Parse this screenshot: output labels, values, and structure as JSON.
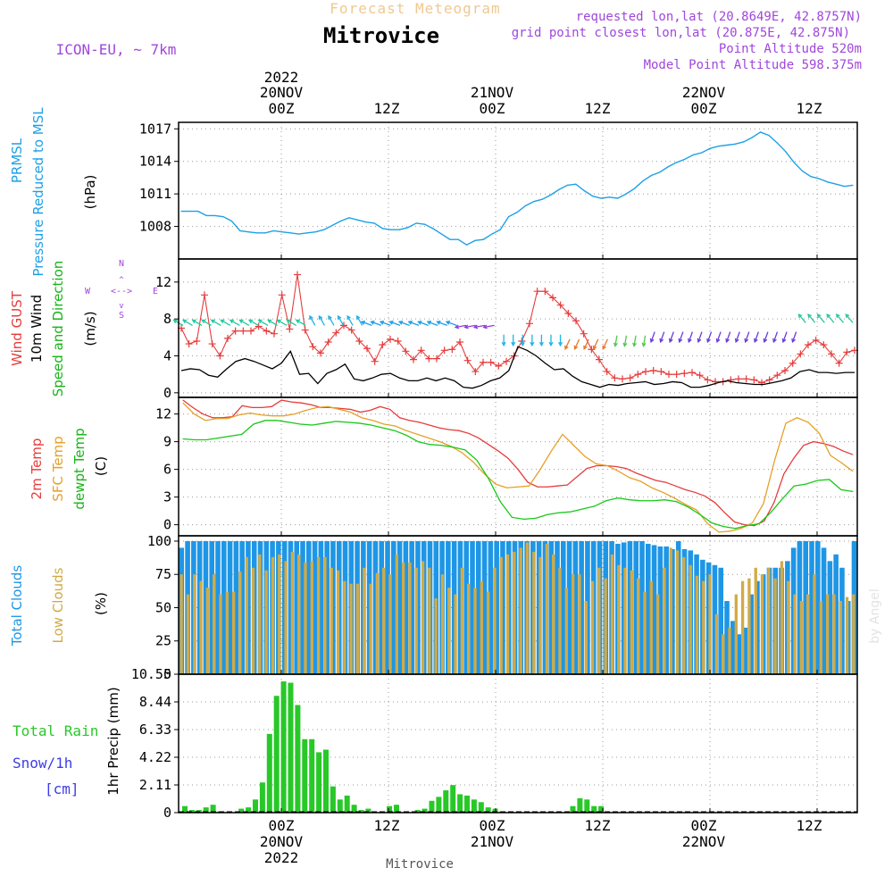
{
  "header": {
    "product": "Forecast Meteogram",
    "location": "Mitrovice",
    "model": "ICON-EU, ~ 7km",
    "requested": "requested lon,lat (20.8649E, 42.8757N)",
    "grid_point": "grid point closest lon,lat (20.875E, 42.875N)",
    "point_alt": "Point Altitude 520m",
    "model_alt": "Model Point Altitude 598.375m",
    "footer": "Mitrovice",
    "watermark": "by Angel"
  },
  "colors": {
    "pressure": "#1ea0e6",
    "gust": "#e63c3c",
    "wind": "#000000",
    "temp2m": "#e63c3c",
    "sfc": "#e6a028",
    "dewpt": "#18c818",
    "total_clouds": "#1e96e6",
    "low_clouds": "#d2aa46",
    "rain": "#28c828",
    "snow": "#3c3ce6",
    "compass": "#a046dc"
  },
  "chart_data": [
    {
      "type": "line",
      "id": "pressure",
      "label_lines": [
        "PRMSL",
        "Pressure Reduced to MSL"
      ],
      "unit": "(hPa)",
      "ylim": [
        1005,
        1017.6
      ],
      "ticks": [
        1008,
        1011,
        1014,
        1017
      ],
      "x_hours": {
        "start": 0,
        "step": 1
      },
      "series": [
        {
          "name": "PRMSL",
          "values": [
            1009.4,
            1009.4,
            1009.4,
            1009,
            1009,
            1008.9,
            1008.5,
            1007.6,
            1007.5,
            1007.4,
            1007.4,
            1007.6,
            1007.5,
            1007.4,
            1007.3,
            1007.4,
            1007.5,
            1007.7,
            1008.1,
            1008.5,
            1008.8,
            1008.6,
            1008.4,
            1008.3,
            1007.8,
            1007.7,
            1007.7,
            1007.9,
            1008.3,
            1008.2,
            1007.8,
            1007.3,
            1006.8,
            1006.8,
            1006.3,
            1006.7,
            1006.8,
            1007.3,
            1007.7,
            1008.9,
            1009.3,
            1009.9,
            1010.3,
            1010.5,
            1010.9,
            1011.4,
            1011.8,
            1011.9,
            1011.3,
            1010.8,
            1010.6,
            1010.7,
            1010.6,
            1011.0,
            1011.5,
            1012.2,
            1012.7,
            1013.0,
            1013.5,
            1013.9,
            1014.2,
            1014.6,
            1014.8,
            1015.2,
            1015.4,
            1015.5,
            1015.6,
            1015.8,
            1016.2,
            1016.7,
            1016.4,
            1015.7,
            1014.9,
            1013.9,
            1013.1,
            1012.6,
            1012.4,
            1012.1,
            1011.9,
            1011.7,
            1011.8
          ]
        }
      ]
    },
    {
      "type": "line",
      "id": "wind",
      "label_lines": [
        "Wind GUST",
        "10m Wind",
        "Speed and Direction"
      ],
      "unit": "(m/s)",
      "ylim": [
        -0.5,
        14.5
      ],
      "ticks": [
        0,
        4,
        8,
        12
      ],
      "compass": {
        "n": "N",
        "s": "S",
        "e": "E",
        "w": "W"
      },
      "series": [
        {
          "name": "Wind GUST",
          "values": [
            7.0,
            5.3,
            5.6,
            10.6,
            5.3,
            4.0,
            5.9,
            6.7,
            6.7,
            6.7,
            7.2,
            6.7,
            6.4,
            10.6,
            6.9,
            12.8,
            6.8,
            5.0,
            4.3,
            5.5,
            6.5,
            7.3,
            6.8,
            5.6,
            4.8,
            3.4,
            5.2,
            5.8,
            5.6,
            4.5,
            3.6,
            4.6,
            3.7,
            3.7,
            4.6,
            4.7,
            5.5,
            3.5,
            2.3,
            3.3,
            3.3,
            2.9,
            3.4,
            4.0,
            5.6,
            7.5,
            11.0,
            11.0,
            10.3,
            9.5,
            8.6,
            7.8,
            6.4,
            4.7,
            3.6,
            2.3,
            1.6,
            1.5,
            1.6,
            2.0,
            2.3,
            2.4,
            2.3,
            2.0,
            2.0,
            2.1,
            2.2,
            1.9,
            1.4,
            1.2,
            1.2,
            1.4,
            1.5,
            1.5,
            1.4,
            1.1,
            1.4,
            1.9,
            2.4,
            3.2,
            4.2,
            5.2,
            5.7,
            5.2,
            4.2,
            3.2,
            4.4,
            4.6
          ]
        },
        {
          "name": "10m Wind",
          "values": [
            2.4,
            2.6,
            2.5,
            1.9,
            1.7,
            2.6,
            3.4,
            3.7,
            3.4,
            3.0,
            2.6,
            3.2,
            4.5,
            2.0,
            2.1,
            1.0,
            2.1,
            2.5,
            3.1,
            1.5,
            1.3,
            1.6,
            2.0,
            2.1,
            1.6,
            1.3,
            1.3,
            1.6,
            1.3,
            1.6,
            1.3,
            0.6,
            0.5,
            0.8,
            1.3,
            1.6,
            2.4,
            5.0,
            4.6,
            4.0,
            3.2,
            2.5,
            2.6,
            1.8,
            1.2,
            0.9,
            0.6,
            0.9,
            0.8,
            1.0,
            1.1,
            1.2,
            0.9,
            1.0,
            1.2,
            1.1,
            0.6,
            0.6,
            0.8,
            1.1,
            1.3,
            1.1,
            1.0,
            0.9,
            0.9,
            1.1,
            1.3,
            1.6,
            2.3,
            2.5,
            2.2,
            2.2,
            2.1,
            2.2,
            2.2
          ]
        }
      ]
    },
    {
      "type": "line",
      "id": "temperature",
      "label_lines": [
        "2m Temp",
        "SFC Temp",
        "dewpt Temp"
      ],
      "unit": "(C)",
      "ylim": [
        -1.2,
        13.8
      ],
      "ticks": [
        0,
        3,
        6,
        9,
        12
      ],
      "series": [
        {
          "name": "2m Temp",
          "values": [
            13.5,
            12.7,
            12.0,
            11.6,
            11.6,
            11.7,
            12.9,
            12.7,
            12.7,
            12.8,
            13.5,
            13.3,
            13.2,
            13.0,
            12.7,
            12.7,
            12.6,
            12.5,
            12.2,
            12.4,
            12.8,
            12.5,
            11.6,
            11.3,
            11.1,
            10.8,
            10.5,
            10.3,
            10.2,
            9.9,
            9.4,
            8.7,
            8.0,
            7.2,
            6.0,
            4.6,
            4.1,
            4.1,
            4.2,
            4.3,
            5.2,
            6.1,
            6.4,
            6.4,
            6.3,
            6.1,
            5.6,
            5.2,
            4.8,
            4.6,
            4.2,
            3.8,
            3.5,
            3.1,
            2.4,
            1.3,
            0.3,
            0.0,
            -0.1,
            0.4,
            2.4,
            5.5,
            7.2,
            8.6,
            9.0,
            8.8,
            8.5,
            8.0,
            7.6
          ]
        },
        {
          "name": "SFC Temp",
          "values": [
            13.2,
            12.0,
            11.3,
            11.5,
            11.5,
            11.9,
            12.1,
            11.9,
            11.8,
            11.8,
            12.0,
            12.4,
            12.7,
            12.8,
            12.5,
            12.2,
            11.6,
            11.3,
            10.9,
            10.7,
            10.2,
            9.8,
            9.4,
            9.0,
            8.5,
            7.8,
            6.8,
            5.5,
            4.4,
            4.0,
            4.1,
            4.2,
            6.0,
            8.0,
            9.8,
            8.6,
            7.4,
            6.6,
            6.4,
            5.8,
            5.1,
            4.7,
            4.0,
            3.5,
            2.9,
            2.2,
            1.6,
            0.1,
            -0.8,
            -0.7,
            -0.4,
            0.2,
            2.3,
            7.0,
            11.0,
            11.6,
            11.1,
            9.9,
            7.5,
            6.7,
            5.8
          ]
        },
        {
          "name": "dewpt Temp",
          "values": [
            9.3,
            9.2,
            9.2,
            9.4,
            9.6,
            9.8,
            10.9,
            11.3,
            11.3,
            11.1,
            10.9,
            10.8,
            11.0,
            11.2,
            11.1,
            11.0,
            10.8,
            10.5,
            10.2,
            9.7,
            9.0,
            8.7,
            8.6,
            8.4,
            8.1,
            7.0,
            5.0,
            2.5,
            0.8,
            0.6,
            0.7,
            1.1,
            1.3,
            1.4,
            1.7,
            2.0,
            2.6,
            2.9,
            2.7,
            2.6,
            2.6,
            2.7,
            2.5,
            1.9,
            1.1,
            0.2,
            -0.2,
            -0.4,
            -0.1,
            0.1,
            1.3,
            2.8,
            4.2,
            4.4,
            4.8,
            4.9,
            3.8,
            3.6
          ]
        }
      ]
    },
    {
      "type": "bar",
      "id": "clouds",
      "label_lines": [
        "Total Clouds",
        "Low Clouds"
      ],
      "unit": "(%)",
      "ylim": [
        0,
        104
      ],
      "ticks": [
        0,
        25,
        50,
        75,
        100
      ],
      "series": [
        {
          "name": "Total Clouds",
          "values": [
            95,
            100,
            100,
            100,
            100,
            100,
            100,
            100,
            100,
            100,
            100,
            100,
            100,
            100,
            100,
            100,
            100,
            100,
            100,
            100,
            100,
            100,
            100,
            100,
            100,
            100,
            100,
            100,
            100,
            100,
            100,
            100,
            100,
            100,
            100,
            100,
            100,
            100,
            100,
            100,
            100,
            100,
            100,
            100,
            100,
            100,
            100,
            100,
            100,
            100,
            100,
            100,
            100,
            100,
            100,
            100,
            100,
            100,
            100,
            100,
            100,
            100,
            100,
            100,
            100,
            100,
            100,
            100,
            100,
            100,
            100,
            100,
            98,
            99,
            100,
            100,
            100,
            98,
            97,
            96,
            96,
            94,
            100,
            94,
            93,
            90,
            86,
            84,
            82,
            80,
            55,
            40,
            30,
            35,
            60,
            70,
            75,
            80,
            80,
            80,
            85,
            95,
            100,
            100,
            100,
            100,
            95,
            85,
            90,
            80,
            55,
            100
          ]
        },
        {
          "name": "Low Clouds",
          "values": [
            75,
            60,
            75,
            70,
            65,
            75,
            60,
            62,
            62,
            77,
            88,
            80,
            90,
            78,
            88,
            90,
            85,
            92,
            90,
            84,
            85,
            88,
            88,
            80,
            78,
            70,
            68,
            68,
            80,
            68,
            76,
            80,
            75,
            90,
            84,
            84,
            80,
            85,
            80,
            57,
            75,
            65,
            60,
            80,
            68,
            65,
            70,
            62,
            80,
            88,
            90,
            92,
            95,
            99,
            92,
            88,
            98,
            90,
            80,
            65,
            75,
            75,
            55,
            70,
            80,
            72,
            90,
            82,
            80,
            78,
            72,
            62,
            70,
            60,
            80,
            95,
            93,
            88,
            82,
            74,
            70,
            75,
            45,
            30,
            35,
            60,
            70,
            72,
            80,
            75,
            80,
            72,
            85,
            70,
            60,
            55,
            60,
            75,
            55,
            60,
            60,
            55,
            58,
            60
          ]
        }
      ]
    },
    {
      "type": "bar",
      "id": "precip",
      "label_lines": [
        "Total Rain",
        "Snow/1h",
        "[cm]"
      ],
      "unit": "1hr Precip (mm)",
      "ylim": [
        0,
        10.55
      ],
      "ticks": [
        0,
        2.11,
        4.22,
        6.33,
        8.44,
        10.55
      ],
      "tick_labels": [
        "0",
        "2.11",
        "4.22",
        "6.33",
        "8.44",
        "10.55"
      ],
      "series": [
        {
          "name": "Total Rain",
          "values": [
            0.5,
            0.2,
            0.2,
            0.4,
            0.6,
            0.1,
            0,
            0,
            0.3,
            0.4,
            1.0,
            2.3,
            6.0,
            8.9,
            10.0,
            9.9,
            8.2,
            5.6,
            5.6,
            4.6,
            4.8,
            2.0,
            1.0,
            1.3,
            0.6,
            0.2,
            0.3,
            0,
            0,
            0.5,
            0.6,
            0,
            0,
            0.2,
            0.3,
            0.9,
            1.2,
            1.7,
            2.1,
            1.4,
            1.3,
            1.0,
            0.8,
            0.4,
            0.3,
            0.1,
            0,
            0,
            0,
            0,
            0,
            0,
            0,
            0,
            0,
            0.5,
            1.1,
            1.0,
            0.5,
            0.5,
            0,
            0,
            0,
            0,
            0,
            0,
            0,
            0,
            0,
            0,
            0,
            0,
            0,
            0,
            0,
            0,
            0,
            0,
            0,
            0
          ]
        }
      ]
    }
  ],
  "xaxis": {
    "top_labels": [
      "00Z",
      "12Z",
      "00Z",
      "12Z",
      "00Z",
      "12Z"
    ],
    "date_labels": [
      "2022",
      "20NOV",
      "21NOV",
      "22NOV"
    ],
    "bottom_labels": [
      "00Z",
      "12Z",
      "00Z",
      "12Z",
      "00Z",
      "12Z"
    ],
    "bottom_dates": [
      "20NOV",
      "2022",
      "21NOV",
      "22NOV"
    ],
    "hour_ticks": [
      0,
      12,
      24,
      36,
      48,
      60
    ],
    "range_hours": [
      -11.5,
      64.5
    ]
  }
}
